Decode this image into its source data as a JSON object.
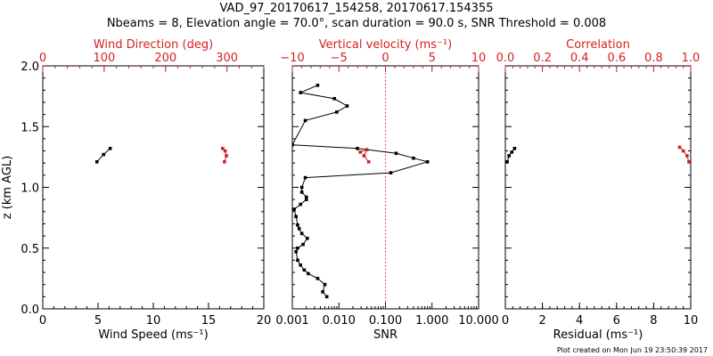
{
  "figure": {
    "title_line1": "VAD_97_20170617_154258, 20170617.154355",
    "title_line2": "Nbeams = 8, Elevation angle = 70.0°, scan duration = 90.0 s, SNR Threshold = 0.008",
    "footnote": "Plot created on Mon Jun 19 23:50:39 2017",
    "colors": {
      "axis": "#000000",
      "secondary": "#d62020",
      "zero_line": "#d62020"
    }
  },
  "chart_data": [
    {
      "type": "line",
      "name": "wind-panel",
      "ylabel": "z (km AGL)",
      "ylim": [
        0,
        2
      ],
      "yticks": [
        0.0,
        0.5,
        1.0,
        1.5,
        2.0
      ],
      "ytick_labels": [
        "0.0",
        "0.5",
        "1.0",
        "1.5",
        "2.0"
      ],
      "bottom_axis": {
        "label": "Wind Speed (ms⁻¹)",
        "range": [
          0,
          20
        ],
        "ticks": [
          0,
          5,
          10,
          15,
          20
        ],
        "tick_labels": [
          "0",
          "5",
          "10",
          "15",
          "20"
        ]
      },
      "top_axis": {
        "label": "Wind Direction (deg)",
        "range": [
          0,
          360
        ],
        "ticks": [
          0,
          100,
          200,
          300
        ],
        "tick_labels": [
          "0",
          "100",
          "200",
          "300"
        ]
      },
      "series": [
        {
          "name": "wind speed",
          "axis": "bottom",
          "x": [
            4.9,
            5.5,
            6.1
          ],
          "y": [
            1.21,
            1.27,
            1.32
          ]
        },
        {
          "name": "wind direction",
          "axis": "top",
          "x": [
            296,
            299,
            297,
            293
          ],
          "y": [
            1.21,
            1.26,
            1.3,
            1.32
          ]
        }
      ]
    },
    {
      "type": "line",
      "name": "snr-panel",
      "ylim": [
        0,
        2
      ],
      "bottom_axis": {
        "label": "SNR",
        "scale": "log",
        "range": [
          0.001,
          10
        ],
        "ticks": [
          0.001,
          0.01,
          0.1,
          1,
          10
        ],
        "tick_labels": [
          "0.001",
          "0.010",
          "0.100",
          "1.000",
          "10.000"
        ]
      },
      "top_axis": {
        "label": "Vertical velocity (ms⁻¹)",
        "range": [
          -10,
          10
        ],
        "ticks": [
          -10,
          -5,
          0,
          5,
          10
        ],
        "tick_labels": [
          "−10",
          "−5",
          "0",
          "5",
          "10"
        ]
      },
      "zero_line": 0,
      "series": [
        {
          "name": "SNR profile",
          "axis": "bottom",
          "x": [
            0.0055,
            0.0045,
            0.005,
            0.0035,
            0.0022,
            0.0018,
            0.0015,
            0.0013,
            0.0012,
            0.0013,
            0.0017,
            0.0021,
            0.0016,
            0.0014,
            0.0013,
            0.0012,
            0.0011,
            0.0015,
            0.002,
            0.002,
            0.0016,
            0.0016,
            0.0019,
            0.13,
            0.8,
            0.4,
            0.17,
            0.025,
            0.001,
            0.0019,
            0.009,
            0.015,
            0.008,
            0.0015,
            0.0035
          ],
          "y": [
            0.1,
            0.14,
            0.2,
            0.25,
            0.29,
            0.32,
            0.36,
            0.4,
            0.47,
            0.5,
            0.53,
            0.58,
            0.62,
            0.66,
            0.69,
            0.76,
            0.82,
            0.86,
            0.9,
            0.92,
            0.96,
            1.0,
            1.08,
            1.12,
            1.21,
            1.24,
            1.28,
            1.32,
            1.35,
            1.55,
            1.62,
            1.67,
            1.73,
            1.78,
            1.84
          ]
        },
        {
          "name": "vertical velocity",
          "axis": "top",
          "x": [
            -1.8,
            -2.3,
            -2.0,
            -2.7
          ],
          "y": [
            1.21,
            1.26,
            1.31,
            1.29
          ]
        }
      ]
    },
    {
      "type": "line",
      "name": "residual-panel",
      "ylim": [
        0,
        2
      ],
      "bottom_axis": {
        "label": "Residual (ms⁻¹)",
        "range": [
          0,
          10
        ],
        "ticks": [
          0,
          2,
          4,
          6,
          8,
          10
        ],
        "tick_labels": [
          "0",
          "2",
          "4",
          "6",
          "8",
          "10"
        ]
      },
      "top_axis": {
        "label": "Correlation",
        "range": [
          0,
          1
        ],
        "ticks": [
          0,
          0.2,
          0.4,
          0.6,
          0.8,
          1.0
        ],
        "tick_labels": [
          "0.0",
          "0.2",
          "0.4",
          "0.6",
          "0.8",
          "1.0"
        ]
      },
      "series": [
        {
          "name": "residual",
          "axis": "bottom",
          "x": [
            0.1,
            0.2,
            0.35,
            0.5
          ],
          "y": [
            1.21,
            1.26,
            1.29,
            1.32
          ]
        },
        {
          "name": "correlation",
          "axis": "top",
          "x": [
            0.99,
            0.98,
            0.96,
            0.94
          ],
          "y": [
            1.21,
            1.26,
            1.3,
            1.33
          ]
        }
      ]
    }
  ]
}
